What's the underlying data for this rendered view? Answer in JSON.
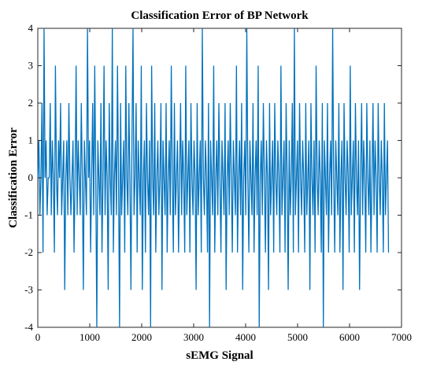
{
  "chart_data": {
    "type": "line",
    "title": "Classification Error of BP Network",
    "xlabel": "sEMG Signal",
    "ylabel": "Classification Error",
    "xlim": [
      0,
      7000
    ],
    "ylim": [
      -4,
      4
    ],
    "x_ticks": [
      "0",
      "1000",
      "2000",
      "3000",
      "4000",
      "5000",
      "6000",
      "7000"
    ],
    "y_ticks": [
      "4",
      "3",
      "2",
      "1",
      "0",
      "-1",
      "-2",
      "-3",
      "-4"
    ],
    "grid": false,
    "color": "#0072BD",
    "series": [
      {
        "x_start": 1,
        "x_end": 6750,
        "note_values": "integer-valued errors in [-4, 4], dense alternating signal",
        "values": [
          0,
          1,
          -1,
          0,
          2,
          -2,
          4,
          0,
          1,
          -1,
          0,
          0,
          2,
          -1,
          1,
          0,
          -2,
          3,
          0,
          -1,
          1,
          0,
          2,
          -1,
          0,
          1,
          -3,
          0,
          1,
          -1,
          2,
          0,
          -1,
          0,
          1,
          -2,
          0,
          3,
          -1,
          1,
          0,
          -1,
          2,
          0,
          -3,
          1,
          0,
          -1,
          4,
          0,
          1,
          -2,
          0,
          2,
          -1,
          3,
          0,
          -4,
          1,
          0,
          -1,
          2,
          -2,
          0,
          3,
          -1,
          1,
          0,
          -3,
          2,
          0,
          -1,
          4,
          -2,
          0,
          1,
          -1,
          3,
          0,
          -4,
          2,
          -1,
          0,
          1,
          -2,
          3,
          0,
          -1,
          2,
          0,
          -3,
          1,
          4,
          -1,
          0,
          2,
          -2,
          1,
          0,
          -1,
          3,
          -3,
          0,
          1,
          -2,
          2,
          0,
          -1,
          1,
          -4,
          3,
          0,
          -1,
          2,
          -2,
          0,
          1,
          -1,
          0,
          2,
          -3,
          1,
          0,
          -1,
          2,
          -2,
          0,
          1,
          -1,
          3,
          0,
          -2,
          2,
          -1,
          0,
          1,
          -2,
          0,
          2,
          -1,
          1,
          0,
          -2,
          3,
          -1,
          0,
          1,
          -2,
          2,
          0,
          -1,
          1,
          0,
          -3,
          2,
          -1,
          0,
          1,
          -2,
          4,
          0,
          -1,
          1,
          0,
          -2,
          2,
          -4,
          1,
          0,
          -1,
          3,
          -2,
          0,
          1,
          -1,
          2,
          0,
          -2,
          1,
          0,
          -1,
          2,
          -3,
          0,
          1,
          -1,
          2,
          0,
          -2,
          1,
          0,
          -1,
          3,
          -2,
          0,
          1,
          -1,
          2,
          -3,
          0,
          1,
          -1,
          4,
          0,
          -2,
          1,
          0,
          -1,
          2,
          -2,
          0,
          1,
          -1,
          3,
          -4,
          0,
          1,
          -1,
          2,
          0,
          -2,
          1,
          0,
          -3,
          2,
          -1,
          0,
          1,
          -2,
          2,
          0,
          -1,
          1,
          0,
          -2,
          3,
          -1,
          0,
          1,
          -2,
          2,
          0,
          -3,
          1,
          -1,
          0,
          2,
          -2,
          4,
          -1,
          0,
          1,
          -2,
          2,
          0,
          -1,
          1,
          0,
          -2,
          2,
          -1,
          0,
          1,
          -3,
          2,
          0,
          -1,
          1,
          -2,
          3,
          0,
          -1,
          1,
          0,
          -2,
          2,
          -4,
          1,
          0,
          -1,
          2,
          -2,
          0,
          1,
          -1,
          4,
          0,
          -2,
          1,
          0,
          -1,
          2,
          -2,
          0,
          1,
          -3,
          2,
          0,
          -1,
          1,
          0,
          -2,
          3,
          -1,
          0,
          1,
          -2,
          2,
          0,
          -1,
          1,
          -3,
          0,
          2,
          -1,
          1,
          0,
          -2,
          2,
          0,
          -1,
          1,
          -2,
          0,
          2,
          -1,
          1,
          0,
          -2,
          2,
          0,
          -1,
          1,
          0,
          -2,
          2,
          -1,
          0,
          1,
          -2
        ]
      }
    ]
  }
}
